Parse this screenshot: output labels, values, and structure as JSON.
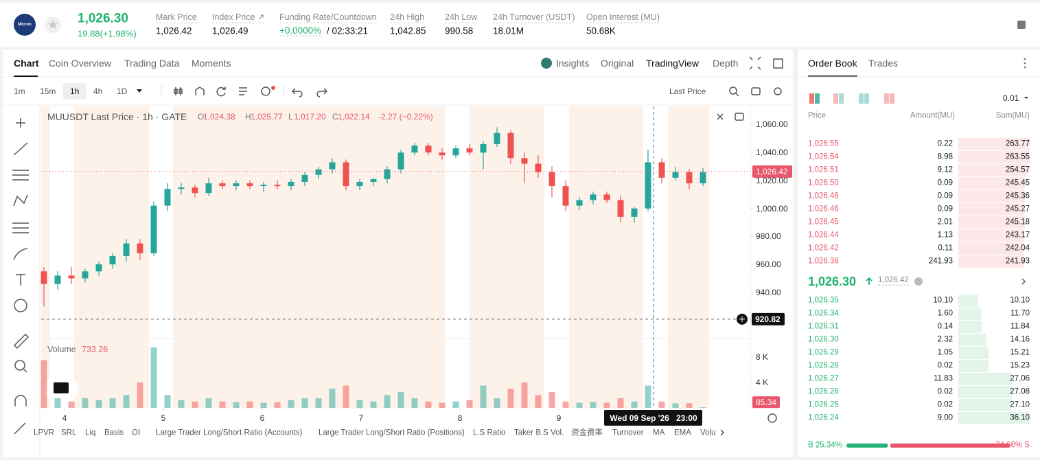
{
  "header": {
    "logo": "Micron",
    "price": "1,026.30",
    "change": "19.88(+1.98%)",
    "stats": [
      {
        "label": "Mark Price",
        "value": "1,026.42"
      },
      {
        "label": "Index Price ↗",
        "value": "1,026.49"
      },
      {
        "label": "Funding Rate/Countdown",
        "value": "+0.0000%",
        "extra": "/ 02:33:21"
      },
      {
        "label": "24h High",
        "value": "1,042.85"
      },
      {
        "label": "24h Low",
        "value": "990.58"
      },
      {
        "label": "24h Turnover (USDT)",
        "value": "18.01M"
      },
      {
        "label": "Open Interest (MU)",
        "value": "50.68K"
      }
    ]
  },
  "tabs": [
    "Chart",
    "Coin Overview",
    "Trading Data",
    "Moments"
  ],
  "view_tabs": [
    "Insights",
    "Original",
    "TradingView",
    "Depth"
  ],
  "intervals": [
    "1m",
    "15m",
    "1h",
    "4h",
    "1D"
  ],
  "price_type": "Last Price",
  "legend": {
    "title": "MUUSDT Last Price · 1h · GATE",
    "ohlc": [
      {
        "key": "O",
        "value": "1,024.38"
      },
      {
        "key": "H",
        "value": "1,025.77"
      },
      {
        "key": "L",
        "value": "1,017.20"
      },
      {
        "key": "C",
        "value": "1,022.14"
      }
    ],
    "change": "-2.27 (−0.22%)",
    "volume_label": "Volume",
    "volume_value": "733.26"
  },
  "chart_data": {
    "type": "candlestick",
    "open": [
      955,
      946,
      952,
      950,
      955,
      960,
      966,
      975,
      968,
      1002,
      1014,
      1015,
      1011,
      1018,
      1016,
      1018,
      1016,
      1017,
      1016,
      1019,
      1024,
      1028,
      1033,
      1016,
      1019,
      1021,
      1028,
      1040,
      1045,
      1040,
      1038,
      1043,
      1040,
      1046,
      1054,
      1036,
      1032,
      1026,
      1016,
      1002,
      1006,
      1010,
      1006,
      994,
      1000,
      1033,
      1022,
      1026,
      1018
    ],
    "high": [
      958,
      955,
      958,
      957,
      962,
      968,
      978,
      978,
      1005,
      1018,
      1018,
      1017,
      1022,
      1020,
      1020,
      1020,
      1019,
      1020,
      1021,
      1026,
      1030,
      1036,
      1035,
      1021,
      1022,
      1030,
      1042,
      1047,
      1047,
      1043,
      1045,
      1046,
      1048,
      1058,
      1056,
      1040,
      1038,
      1030,
      1020,
      1008,
      1012,
      1012,
      1009,
      1001,
      1042,
      1036,
      1030,
      1028,
      1029
    ],
    "low": [
      930,
      942,
      946,
      947,
      952,
      957,
      962,
      963,
      966,
      998,
      1010,
      1008,
      1009,
      1014,
      1013,
      1014,
      1012,
      1014,
      1013,
      1016,
      1021,
      1025,
      1013,
      1013,
      1016,
      1018,
      1025,
      1038,
      1038,
      1035,
      1036,
      1038,
      1028,
      1044,
      1032,
      1018,
      1022,
      1008,
      998,
      999,
      1003,
      1004,
      990,
      990,
      998,
      1018,
      1020,
      1014,
      1016
    ],
    "close": [
      946,
      952,
      950,
      955,
      960,
      966,
      975,
      968,
      1002,
      1014,
      1015,
      1011,
      1018,
      1016,
      1018,
      1016,
      1017,
      1016,
      1019,
      1024,
      1028,
      1033,
      1016,
      1019,
      1021,
      1028,
      1040,
      1045,
      1040,
      1038,
      1043,
      1040,
      1046,
      1054,
      1036,
      1032,
      1026,
      1016,
      1002,
      1006,
      1010,
      1006,
      994,
      1000,
      1033,
      1022,
      1026,
      1018,
      1026
    ],
    "volume": [
      7500,
      1500,
      1000,
      1500,
      1200,
      1500,
      2000,
      4000,
      9500,
      2000,
      1200,
      1000,
      1500,
      1000,
      900,
      1000,
      800,
      900,
      1200,
      1500,
      1500,
      3000,
      3500,
      1200,
      1000,
      2000,
      2500,
      1500,
      1000,
      800,
      1000,
      1200,
      3500,
      1500,
      3000,
      4000,
      2000,
      2500,
      1000,
      800,
      900,
      800,
      1500,
      1000,
      3500,
      1000,
      700,
      733.26,
      85.34
    ],
    "xlim": [
      -0.2,
      51.45
    ],
    "xticks": [
      {
        "value": 1.5,
        "label": "4"
      },
      {
        "value": 8.7,
        "label": "5"
      },
      {
        "value": 15.9,
        "label": "6"
      },
      {
        "value": 23.1,
        "label": "7"
      },
      {
        "value": 30.3,
        "label": "8"
      },
      {
        "value": 37.5,
        "label": "9"
      }
    ],
    "ylim": [
      907,
      1073
    ],
    "yticks": [
      {
        "value": 1060,
        "label": "1,060.00"
      },
      {
        "value": 1040,
        "label": "1,040.00"
      },
      {
        "value": 1020,
        "label": "1,020.00"
      },
      {
        "value": 1000,
        "label": "1,000.00"
      },
      {
        "value": 980,
        "label": "980.00"
      },
      {
        "value": 960,
        "label": "960.00"
      },
      {
        "value": 940,
        "label": "940.00"
      }
    ],
    "volume_ylim": [
      0,
      10800
    ],
    "volume_ticks": [
      {
        "value": 8000,
        "label": "8 K"
      },
      {
        "value": 4000,
        "label": "4 K"
      }
    ],
    "last_price": {
      "value": 1026.42,
      "label": "1,026.42"
    },
    "crosshair_price": {
      "value": 920.82,
      "label": "920.82"
    },
    "last_volume": {
      "value": 85.34,
      "label": "85.34"
    },
    "crosshair_time": {
      "value": 44.4,
      "label": "Wed 09 Sep '26   23:00"
    },
    "colors": {
      "up": "#26a69a",
      "down": "#ef5350"
    }
  },
  "indicators": [
    "LPVR",
    "SRL",
    "Liq",
    "Basis",
    "OI",
    "Large Trader Long/Short Ratio (Accounts)",
    "Large Trader Long/Short Ratio (Positions)",
    "L.S Ratio",
    "Taker B.S Vol.",
    "资金费率",
    "Turnover",
    "MA",
    "EMA",
    "Volu"
  ],
  "order_book": {
    "tabs": [
      "Order Book",
      "Trades"
    ],
    "precision": "0.01",
    "columns": [
      "Price",
      "Amount(MU)",
      "Sum(MU)"
    ],
    "asks": {
      "prices": [
        "1,026.55",
        "1,026.54",
        "1,026.51",
        "1,026.50",
        "1,026.48",
        "1,026.46",
        "1,026.45",
        "1,026.44",
        "1,026.42",
        "1,026.38"
      ],
      "amounts": [
        "0.22",
        "8.98",
        "9.12",
        "0.09",
        "0.09",
        "0.09",
        "2.01",
        "1.13",
        "0.11",
        "241.93"
      ],
      "sums": [
        263.77,
        263.55,
        254.57,
        245.45,
        245.36,
        245.27,
        245.18,
        243.17,
        242.04,
        241.93
      ],
      "sum_labels": [
        "263.77",
        "263.55",
        "254.57",
        "245.45",
        "245.36",
        "245.27",
        "245.18",
        "243.17",
        "242.04",
        "241.93"
      ]
    },
    "mid_price": "1,026.30",
    "mark_price": "1,026.42",
    "bids": {
      "prices": [
        "1,026.35",
        "1,026.34",
        "1,026.31",
        "1,026.30",
        "1,026.29",
        "1,026.28",
        "1,026.27",
        "1,026.26",
        "1,026.25",
        "1,026.24"
      ],
      "amounts": [
        "10.10",
        "1.60",
        "0.14",
        "2.32",
        "1.05",
        "0.02",
        "11.83",
        "0.02",
        "0.02",
        "9.00"
      ],
      "sums": [
        10.1,
        11.7,
        11.84,
        14.16,
        15.21,
        15.23,
        27.06,
        27.08,
        27.1,
        36.1
      ],
      "sum_labels": [
        "10.10",
        "11.70",
        "11.84",
        "14.16",
        "15.21",
        "15.23",
        "27.06",
        "27.08",
        "27.10",
        "36.10"
      ]
    },
    "ratio": {
      "buy": 25.34,
      "buy_label": "B 25.34%",
      "sell": 74.66,
      "sell_label": "74.66% S"
    }
  }
}
